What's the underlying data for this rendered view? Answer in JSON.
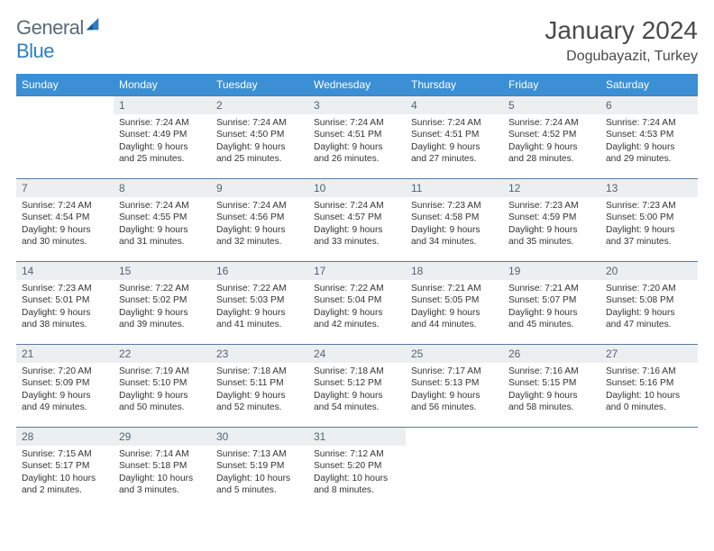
{
  "brand": {
    "part1": "General",
    "part2": "Blue"
  },
  "title": "January 2024",
  "location": "Dogubayazit, Turkey",
  "colors": {
    "header_bg": "#3b8fd4",
    "header_text": "#ffffff",
    "daynum_bg": "#eceff2",
    "daynum_text": "#556270",
    "border": "#5a7a9a",
    "body_text": "#333333",
    "logo_gray": "#5a6b7a",
    "logo_blue": "#2d7fc1",
    "page_bg": "#ffffff"
  },
  "weekdays": [
    "Sunday",
    "Monday",
    "Tuesday",
    "Wednesday",
    "Thursday",
    "Friday",
    "Saturday"
  ],
  "weeks": [
    [
      null,
      {
        "n": "1",
        "sr": "7:24 AM",
        "ss": "4:49 PM",
        "dl": "9 hours and 25 minutes."
      },
      {
        "n": "2",
        "sr": "7:24 AM",
        "ss": "4:50 PM",
        "dl": "9 hours and 25 minutes."
      },
      {
        "n": "3",
        "sr": "7:24 AM",
        "ss": "4:51 PM",
        "dl": "9 hours and 26 minutes."
      },
      {
        "n": "4",
        "sr": "7:24 AM",
        "ss": "4:51 PM",
        "dl": "9 hours and 27 minutes."
      },
      {
        "n": "5",
        "sr": "7:24 AM",
        "ss": "4:52 PM",
        "dl": "9 hours and 28 minutes."
      },
      {
        "n": "6",
        "sr": "7:24 AM",
        "ss": "4:53 PM",
        "dl": "9 hours and 29 minutes."
      }
    ],
    [
      {
        "n": "7",
        "sr": "7:24 AM",
        "ss": "4:54 PM",
        "dl": "9 hours and 30 minutes."
      },
      {
        "n": "8",
        "sr": "7:24 AM",
        "ss": "4:55 PM",
        "dl": "9 hours and 31 minutes."
      },
      {
        "n": "9",
        "sr": "7:24 AM",
        "ss": "4:56 PM",
        "dl": "9 hours and 32 minutes."
      },
      {
        "n": "10",
        "sr": "7:24 AM",
        "ss": "4:57 PM",
        "dl": "9 hours and 33 minutes."
      },
      {
        "n": "11",
        "sr": "7:23 AM",
        "ss": "4:58 PM",
        "dl": "9 hours and 34 minutes."
      },
      {
        "n": "12",
        "sr": "7:23 AM",
        "ss": "4:59 PM",
        "dl": "9 hours and 35 minutes."
      },
      {
        "n": "13",
        "sr": "7:23 AM",
        "ss": "5:00 PM",
        "dl": "9 hours and 37 minutes."
      }
    ],
    [
      {
        "n": "14",
        "sr": "7:23 AM",
        "ss": "5:01 PM",
        "dl": "9 hours and 38 minutes."
      },
      {
        "n": "15",
        "sr": "7:22 AM",
        "ss": "5:02 PM",
        "dl": "9 hours and 39 minutes."
      },
      {
        "n": "16",
        "sr": "7:22 AM",
        "ss": "5:03 PM",
        "dl": "9 hours and 41 minutes."
      },
      {
        "n": "17",
        "sr": "7:22 AM",
        "ss": "5:04 PM",
        "dl": "9 hours and 42 minutes."
      },
      {
        "n": "18",
        "sr": "7:21 AM",
        "ss": "5:05 PM",
        "dl": "9 hours and 44 minutes."
      },
      {
        "n": "19",
        "sr": "7:21 AM",
        "ss": "5:07 PM",
        "dl": "9 hours and 45 minutes."
      },
      {
        "n": "20",
        "sr": "7:20 AM",
        "ss": "5:08 PM",
        "dl": "9 hours and 47 minutes."
      }
    ],
    [
      {
        "n": "21",
        "sr": "7:20 AM",
        "ss": "5:09 PM",
        "dl": "9 hours and 49 minutes."
      },
      {
        "n": "22",
        "sr": "7:19 AM",
        "ss": "5:10 PM",
        "dl": "9 hours and 50 minutes."
      },
      {
        "n": "23",
        "sr": "7:18 AM",
        "ss": "5:11 PM",
        "dl": "9 hours and 52 minutes."
      },
      {
        "n": "24",
        "sr": "7:18 AM",
        "ss": "5:12 PM",
        "dl": "9 hours and 54 minutes."
      },
      {
        "n": "25",
        "sr": "7:17 AM",
        "ss": "5:13 PM",
        "dl": "9 hours and 56 minutes."
      },
      {
        "n": "26",
        "sr": "7:16 AM",
        "ss": "5:15 PM",
        "dl": "9 hours and 58 minutes."
      },
      {
        "n": "27",
        "sr": "7:16 AM",
        "ss": "5:16 PM",
        "dl": "10 hours and 0 minutes."
      }
    ],
    [
      {
        "n": "28",
        "sr": "7:15 AM",
        "ss": "5:17 PM",
        "dl": "10 hours and 2 minutes."
      },
      {
        "n": "29",
        "sr": "7:14 AM",
        "ss": "5:18 PM",
        "dl": "10 hours and 3 minutes."
      },
      {
        "n": "30",
        "sr": "7:13 AM",
        "ss": "5:19 PM",
        "dl": "10 hours and 5 minutes."
      },
      {
        "n": "31",
        "sr": "7:12 AM",
        "ss": "5:20 PM",
        "dl": "10 hours and 8 minutes."
      },
      null,
      null,
      null
    ]
  ],
  "labels": {
    "sunrise": "Sunrise:",
    "sunset": "Sunset:",
    "daylight": "Daylight:"
  }
}
